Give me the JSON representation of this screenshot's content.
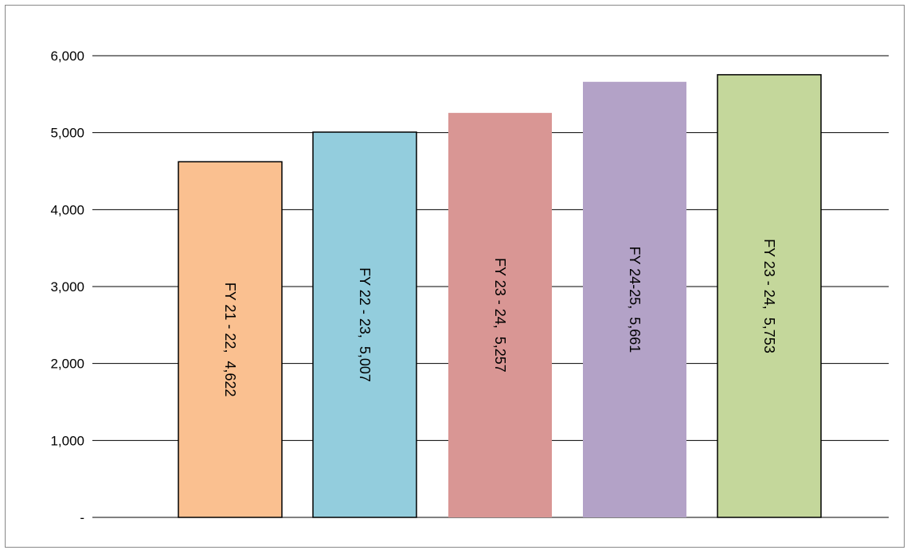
{
  "chart_data": {
    "type": "bar",
    "title": "",
    "xlabel": "",
    "ylabel": "",
    "ylim": [
      0,
      6000
    ],
    "yticks": [
      0,
      1000,
      2000,
      3000,
      4000,
      5000,
      6000
    ],
    "ytick_labels": [
      "-",
      "1,000",
      "2,000",
      "3,000",
      "4,000",
      "5,000",
      "6,000"
    ],
    "grid": true,
    "legend": "none",
    "categories": [
      "FY 21 - 22",
      "FY 22 - 23",
      "FY 23 - 24",
      "FY 24-25",
      "FY 23 - 24"
    ],
    "values": [
      4622,
      5007,
      5257,
      5661,
      5753
    ],
    "data_labels": [
      "FY 21 - 22,  4,622",
      "FY 22 - 23,  5,007",
      "FY 23 - 24,  5,257",
      "FY 24-25,  5,661",
      "FY 23 - 24,  5,753"
    ],
    "colors": [
      "#FAC090",
      "#93CDDD",
      "#D99694",
      "#B3A2C7",
      "#C4D79B"
    ],
    "outlined": [
      true,
      true,
      false,
      false,
      true
    ]
  }
}
